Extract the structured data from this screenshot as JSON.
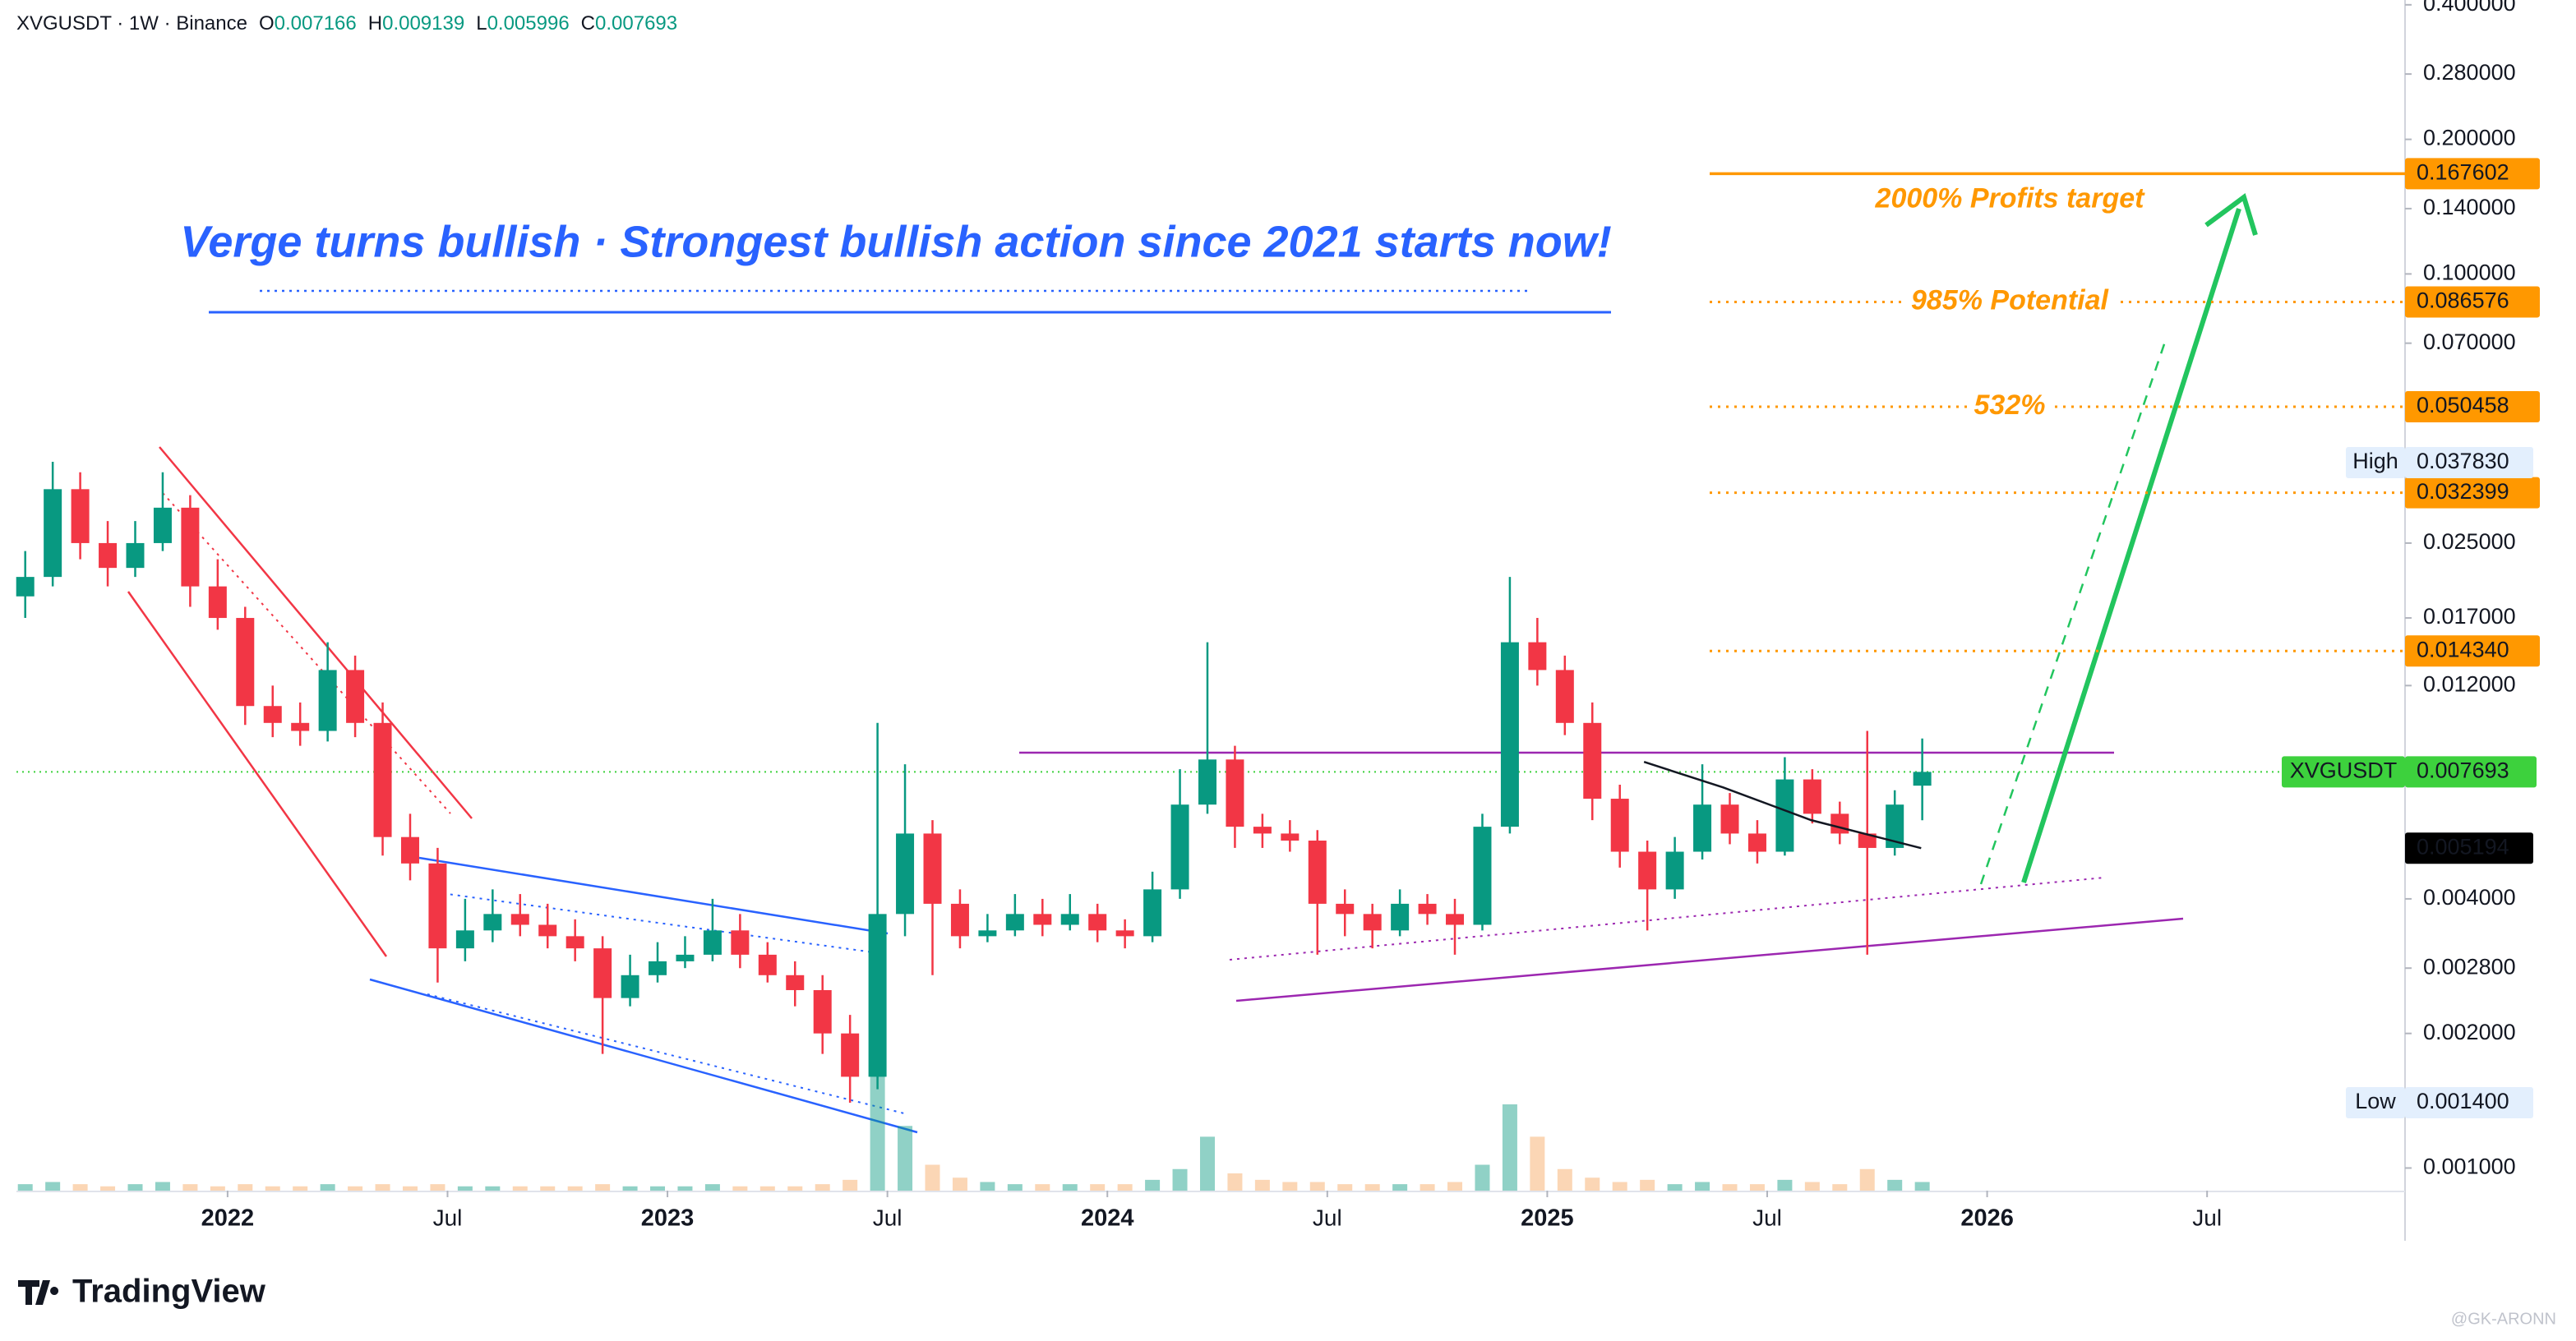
{
  "chart_data": {
    "type": "candlestick",
    "header": "XVGUSDT · 1W · Binance",
    "header_fields": [
      "O",
      "H",
      "L",
      "C"
    ],
    "symbol": "XVGUSDT",
    "title": "Verge turns bullish · Strongest bullish action since 2021 starts now!",
    "log_scale": true,
    "grid": false,
    "xlim": [
      2021.52,
      2026.95
    ],
    "ylim": [
      0.00089,
      0.41
    ],
    "xticks": [
      2022,
      {
        "value": 2022.5,
        "label": "Jul"
      },
      2023,
      {
        "value": 2023.5,
        "label": "Jul"
      },
      2024,
      {
        "value": 2024.5,
        "label": "Jul"
      },
      2025,
      {
        "value": 2025.5,
        "label": "Jul"
      },
      2026,
      {
        "value": 2026.5,
        "label": "Jul"
      }
    ],
    "yticks": [
      {
        "value": 0.4,
        "label": "0.400000"
      },
      {
        "value": 0.28,
        "label": "0.280000"
      },
      {
        "value": 0.2,
        "label": "0.200000"
      },
      {
        "value": 0.14,
        "label": "0.140000"
      },
      {
        "value": 0.1,
        "label": "0.100000"
      },
      {
        "value": 0.07,
        "label": "0.070000"
      },
      {
        "value": 0.025,
        "label": "0.025000"
      },
      {
        "value": 0.017,
        "label": "0.017000"
      },
      {
        "value": 0.012,
        "label": "0.012000"
      },
      {
        "value": 0.004,
        "label": "0.004000"
      },
      {
        "value": 0.0028,
        "label": "0.002800"
      },
      {
        "value": 0.002,
        "label": "0.002000"
      },
      {
        "value": 0.001,
        "label": "0.001000"
      }
    ],
    "x": [
      2021.54,
      2021.6025,
      2021.665,
      2021.7275,
      2021.79,
      2021.8525,
      2021.915,
      2021.9775,
      2022.04,
      2022.1025,
      2022.165,
      2022.2275,
      2022.29,
      2022.3525,
      2022.415,
      2022.4775,
      2022.54,
      2022.6025,
      2022.665,
      2022.7275,
      2022.79,
      2022.8525,
      2022.915,
      2022.9775,
      2023.04,
      2023.1025,
      2023.165,
      2023.2275,
      2023.29,
      2023.3525,
      2023.415,
      2023.4775,
      2023.54,
      2023.6025,
      2023.665,
      2023.7275,
      2023.79,
      2023.8525,
      2023.915,
      2023.9775,
      2024.04,
      2024.1025,
      2024.165,
      2024.2275,
      2024.29,
      2024.3525,
      2024.415,
      2024.4775,
      2024.54,
      2024.6025,
      2024.665,
      2024.7275,
      2024.79,
      2024.8525,
      2024.915,
      2024.9775,
      2025.04,
      2025.1025,
      2025.165,
      2025.2275,
      2025.29,
      2025.3525,
      2025.415,
      2025.4775,
      2025.54,
      2025.6025,
      2025.665,
      2025.7275,
      2025.79,
      2025.8525
    ],
    "open": [
      0.019,
      0.021,
      0.033,
      0.025,
      0.022,
      0.025,
      0.03,
      0.02,
      0.017,
      0.0108,
      0.0099,
      0.0095,
      0.013,
      0.0099,
      0.0055,
      0.0048,
      0.0031,
      0.0034,
      0.0037,
      0.0035,
      0.0033,
      0.0031,
      0.0024,
      0.0027,
      0.0029,
      0.003,
      0.0034,
      0.003,
      0.0027,
      0.0025,
      0.002,
      0.0016,
      0.0037,
      0.0056,
      0.0039,
      0.0033,
      0.0034,
      0.0037,
      0.0035,
      0.0037,
      0.0034,
      0.0033,
      0.0042,
      0.0065,
      0.0082,
      0.0058,
      0.0056,
      0.0054,
      0.0039,
      0.0037,
      0.0034,
      0.0039,
      0.0037,
      0.0035,
      0.0058,
      0.015,
      0.013,
      0.0099,
      0.0067,
      0.0051,
      0.0042,
      0.0051,
      0.0065,
      0.0056,
      0.0051,
      0.0074,
      0.0062,
      0.0056,
      0.0052,
      0.007166
    ],
    "high": [
      0.024,
      0.038,
      0.036,
      0.028,
      0.028,
      0.036,
      0.032,
      0.023,
      0.018,
      0.012,
      0.011,
      0.015,
      0.014,
      0.011,
      0.0062,
      0.0052,
      0.004,
      0.0042,
      0.0041,
      0.0039,
      0.0036,
      0.0033,
      0.003,
      0.0032,
      0.0033,
      0.004,
      0.0037,
      0.0032,
      0.0029,
      0.0027,
      0.0022,
      0.0099,
      0.008,
      0.006,
      0.0042,
      0.0037,
      0.0041,
      0.004,
      0.0041,
      0.0039,
      0.0036,
      0.0046,
      0.0078,
      0.015,
      0.0088,
      0.0062,
      0.006,
      0.0057,
      0.0042,
      0.0039,
      0.0042,
      0.0041,
      0.004,
      0.0062,
      0.021,
      0.017,
      0.014,
      0.011,
      0.0072,
      0.0054,
      0.0055,
      0.008,
      0.0069,
      0.006,
      0.0083,
      0.0078,
      0.0066,
      0.0095,
      0.007,
      0.009139
    ],
    "low": [
      0.017,
      0.02,
      0.023,
      0.02,
      0.021,
      0.024,
      0.018,
      0.016,
      0.0098,
      0.0092,
      0.0088,
      0.009,
      0.0092,
      0.005,
      0.0044,
      0.0026,
      0.0029,
      0.0032,
      0.0033,
      0.0031,
      0.0029,
      0.0018,
      0.0023,
      0.0026,
      0.0028,
      0.0029,
      0.0028,
      0.0026,
      0.0023,
      0.0018,
      0.0014,
      0.0015,
      0.0033,
      0.0027,
      0.0031,
      0.0032,
      0.0033,
      0.0033,
      0.0034,
      0.0032,
      0.0031,
      0.0032,
      0.004,
      0.0062,
      0.0052,
      0.0052,
      0.0051,
      0.003,
      0.0033,
      0.0031,
      0.0033,
      0.0035,
      0.003,
      0.0034,
      0.0056,
      0.012,
      0.0093,
      0.006,
      0.0047,
      0.0034,
      0.004,
      0.0049,
      0.0053,
      0.0048,
      0.005,
      0.0059,
      0.0053,
      0.003,
      0.005,
      0.005996
    ],
    "close": [
      0.021,
      0.033,
      0.025,
      0.022,
      0.025,
      0.03,
      0.02,
      0.017,
      0.0108,
      0.0099,
      0.0095,
      0.013,
      0.0099,
      0.0055,
      0.0048,
      0.0031,
      0.0034,
      0.0037,
      0.0035,
      0.0033,
      0.0031,
      0.0024,
      0.0027,
      0.0029,
      0.003,
      0.0034,
      0.003,
      0.0027,
      0.0025,
      0.002,
      0.0016,
      0.0037,
      0.0056,
      0.0039,
      0.0033,
      0.0034,
      0.0037,
      0.0035,
      0.0037,
      0.0034,
      0.0033,
      0.0042,
      0.0065,
      0.0082,
      0.0058,
      0.0056,
      0.0054,
      0.0039,
      0.0037,
      0.0034,
      0.0039,
      0.0037,
      0.0035,
      0.0058,
      0.015,
      0.013,
      0.0099,
      0.0067,
      0.0051,
      0.0042,
      0.0051,
      0.0065,
      0.0056,
      0.0051,
      0.0074,
      0.0062,
      0.0056,
      0.0052,
      0.0065,
      0.007693
    ],
    "volume": [
      3,
      4,
      3,
      2,
      3,
      4,
      3,
      2,
      3,
      2,
      2,
      3,
      2,
      3,
      2,
      3,
      2,
      2,
      2,
      2,
      2,
      3,
      2,
      2,
      2,
      3,
      2,
      2,
      2,
      3,
      5,
      80,
      30,
      12,
      6,
      4,
      3,
      3,
      3,
      3,
      3,
      5,
      10,
      25,
      8,
      5,
      4,
      4,
      3,
      3,
      3,
      3,
      4,
      12,
      40,
      25,
      10,
      6,
      4,
      5,
      3,
      4,
      3,
      3,
      5,
      4,
      3,
      10,
      5,
      4
    ],
    "up_color": "#089981",
    "down_color": "#f23645",
    "ma": {
      "x": [
        2025.22,
        2025.4,
        2025.6,
        2025.85
      ],
      "values": [
        0.0081,
        0.0071,
        0.006,
        0.005194
      ],
      "color": "#131722"
    },
    "levels": [
      {
        "value": 0.167602,
        "label": "2000% Profits target",
        "style": "solid"
      },
      {
        "value": 0.086576,
        "label": "985% Potential",
        "style": "dotted"
      },
      {
        "value": 0.050458,
        "label": "532%",
        "style": "dotted"
      },
      {
        "value": 0.032399,
        "style": "dotted"
      },
      {
        "value": 0.01434,
        "value_label": "0.014340",
        "style": "dotted"
      }
    ],
    "level_color": "#ff9800",
    "high_marker": {
      "label": "High",
      "value": 0.03783,
      "value_label": "0.037830"
    },
    "low_marker": {
      "label": "Low",
      "value": 0.0014,
      "value_label": "0.001400"
    },
    "last_color": "#3dd13d",
    "brand": "TradingView",
    "watermark": "@GK-ARONN"
  }
}
